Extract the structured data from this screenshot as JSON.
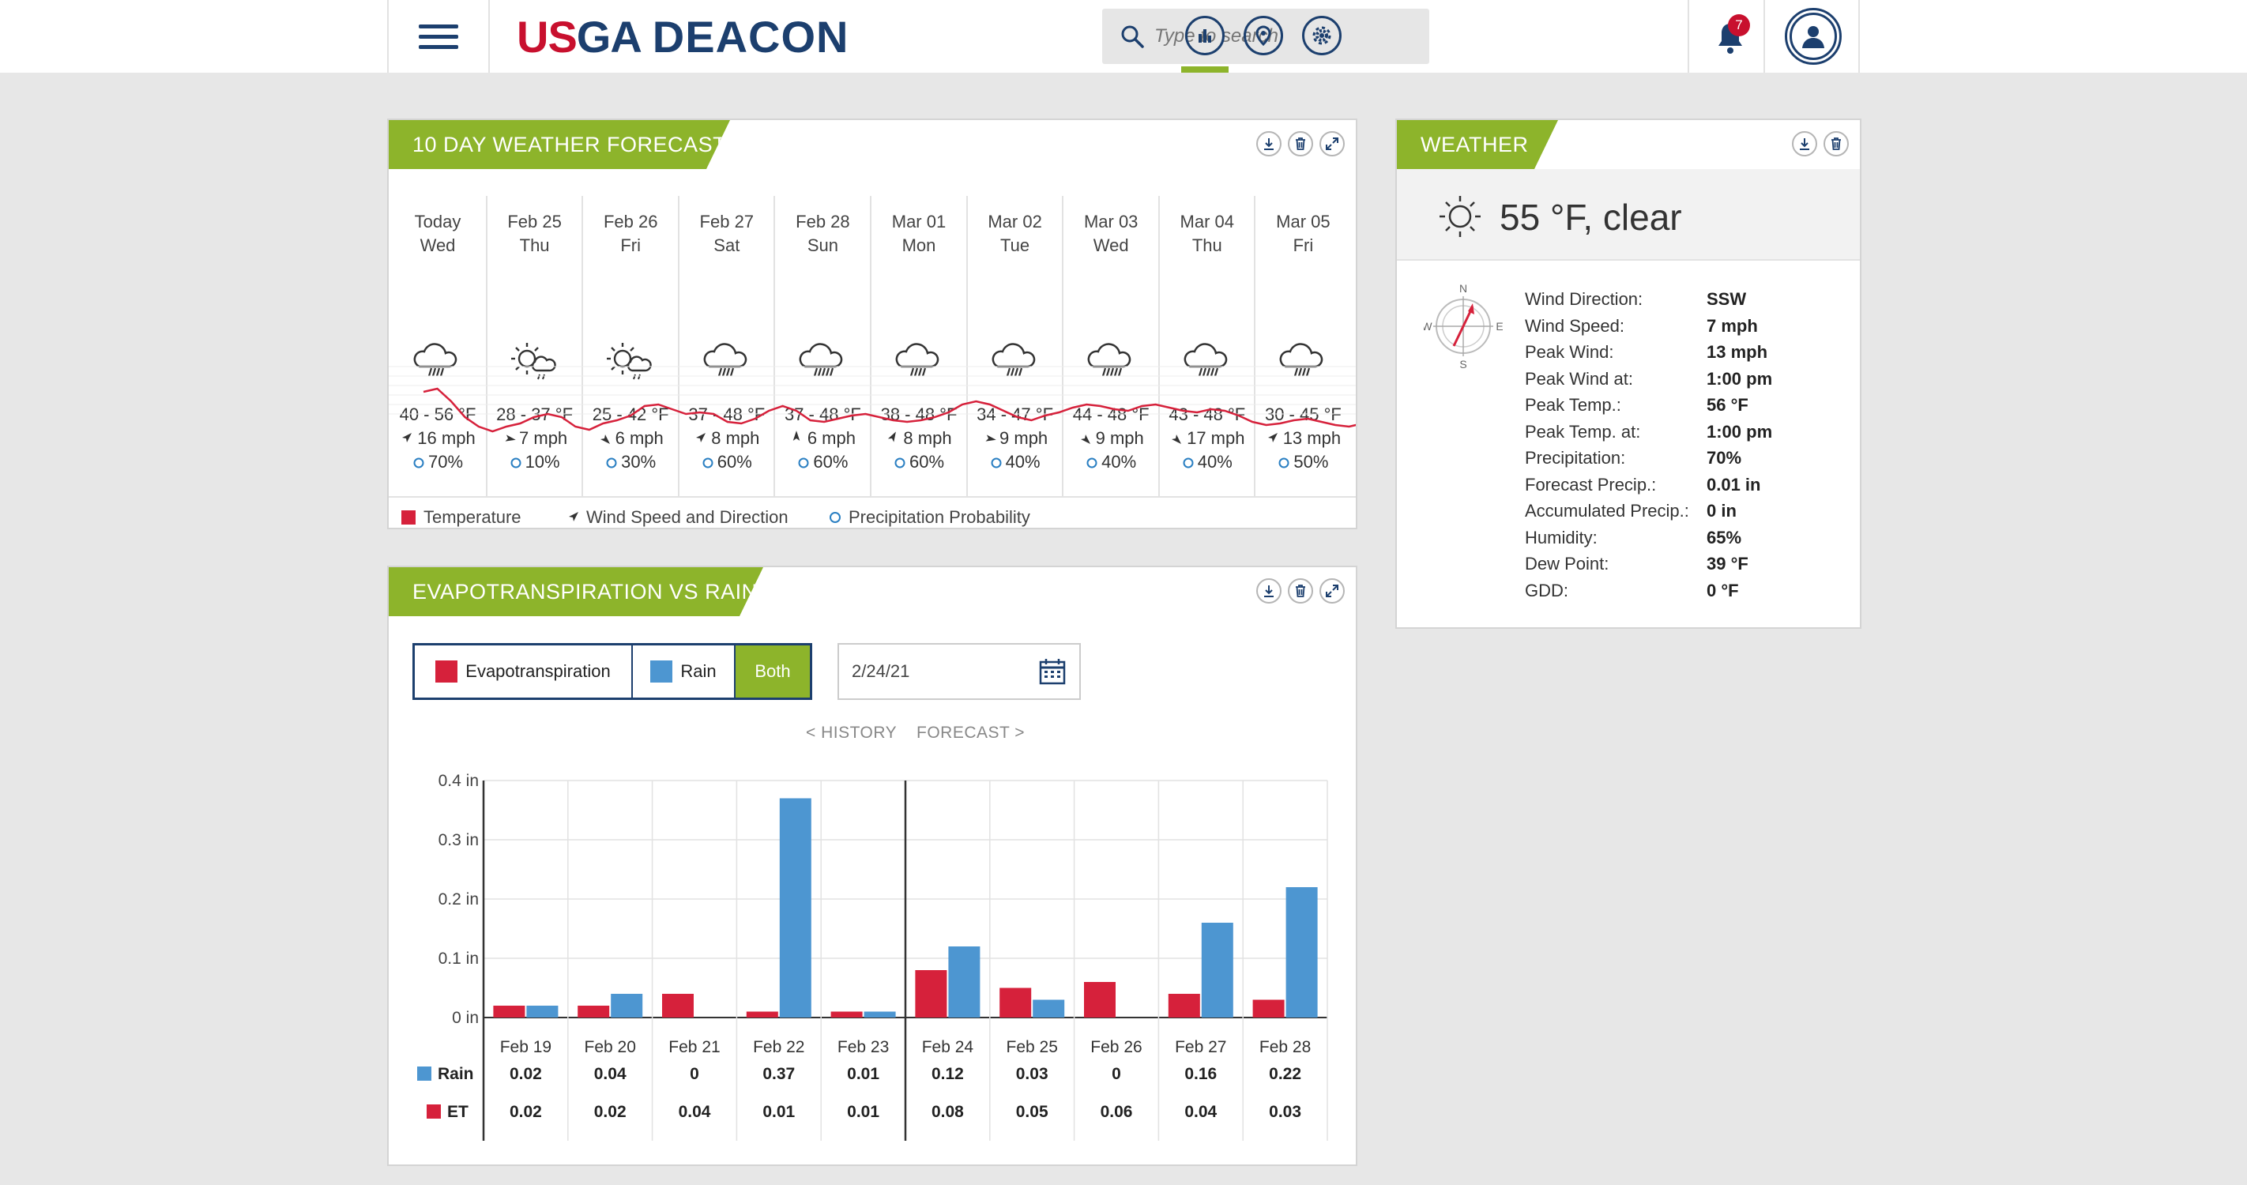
{
  "header": {
    "logo_us": "US",
    "logo_ga": "GA",
    "logo_app": "DEACON",
    "search_placeholder": "Type to search",
    "notification_count": "7"
  },
  "forecast_panel": {
    "title": "10 DAY WEATHER FORECAST",
    "days": [
      {
        "date": "Today",
        "dow": "Wed",
        "temp": "40 - 56 °F",
        "wind": "16 mph",
        "wind_dir_deg": 45,
        "precip": "70%",
        "icon": "rain"
      },
      {
        "date": "Feb 25",
        "dow": "Thu",
        "temp": "28 - 37 °F",
        "wind": "7 mph",
        "wind_dir_deg": 100,
        "precip": "10%",
        "icon": "partly-sunny"
      },
      {
        "date": "Feb 26",
        "dow": "Fri",
        "temp": "25 - 42 °F",
        "wind": "6 mph",
        "wind_dir_deg": 135,
        "precip": "30%",
        "icon": "partly-sunny"
      },
      {
        "date": "Feb 27",
        "dow": "Sat",
        "temp": "37 - 48 °F",
        "wind": "8 mph",
        "wind_dir_deg": 45,
        "precip": "60%",
        "icon": "rain"
      },
      {
        "date": "Feb 28",
        "dow": "Sun",
        "temp": "37 - 48 °F",
        "wind": "6 mph",
        "wind_dir_deg": 0,
        "precip": "60%",
        "icon": "heavy-rain"
      },
      {
        "date": "Mar 01",
        "dow": "Mon",
        "temp": "38 - 48 °F",
        "wind": "8 mph",
        "wind_dir_deg": 30,
        "precip": "60%",
        "icon": "rain"
      },
      {
        "date": "Mar 02",
        "dow": "Tue",
        "temp": "34 - 47 °F",
        "wind": "9 mph",
        "wind_dir_deg": 100,
        "precip": "40%",
        "icon": "rain"
      },
      {
        "date": "Mar 03",
        "dow": "Wed",
        "temp": "44 - 48 °F",
        "wind": "9 mph",
        "wind_dir_deg": 135,
        "precip": "40%",
        "icon": "heavy-rain"
      },
      {
        "date": "Mar 04",
        "dow": "Thu",
        "temp": "43 - 48 °F",
        "wind": "17 mph",
        "wind_dir_deg": 135,
        "precip": "40%",
        "icon": "heavy-rain"
      },
      {
        "date": "Mar 05",
        "dow": "Fri",
        "temp": "30 - 45 °F",
        "wind": "13 mph",
        "wind_dir_deg": 45,
        "precip": "50%",
        "icon": "rain"
      }
    ],
    "legend": {
      "temperature": "Temperature",
      "wind": "Wind Speed and Direction",
      "precip": "Precipitation Probability"
    }
  },
  "weather_panel": {
    "title": "WEATHER",
    "current": "55 °F, clear",
    "compass": {
      "n": "N",
      "s": "S",
      "e": "E",
      "w": "W"
    },
    "details": [
      {
        "label": "Wind Direction:",
        "value": "SSW"
      },
      {
        "label": "Wind Speed:",
        "value": "7 mph"
      },
      {
        "label": "Peak Wind:",
        "value": "13 mph"
      },
      {
        "label": "Peak Wind at:",
        "value": "1:00 pm"
      },
      {
        "label": "Peak Temp.:",
        "value": "56 °F"
      },
      {
        "label": "Peak Temp. at:",
        "value": "1:00 pm"
      },
      {
        "label": "Precipitation:",
        "value": "70%"
      },
      {
        "label": "Forecast Precip.:",
        "value": "0.01 in"
      },
      {
        "label": "Accumulated Precip.:",
        "value": "0 in"
      },
      {
        "label": "Humidity:",
        "value": "65%"
      },
      {
        "label": "Dew Point:",
        "value": "39 °F"
      },
      {
        "label": "GDD:",
        "value": "0 °F"
      }
    ]
  },
  "et_panel": {
    "title": "EVAPOTRANSPIRATION VS RAIN",
    "toggle": {
      "et": "Evapotranspiration",
      "rain": "Rain",
      "both": "Both"
    },
    "date": "2/24/21",
    "history_label": "< HISTORY",
    "forecast_label": "FORECAST >",
    "row_labels": {
      "rain": "Rain",
      "et": "ET"
    }
  },
  "colors": {
    "accent": "#8db42b",
    "navy": "#1c3f6e",
    "et": "#d6213b",
    "rain": "#4d96d1"
  },
  "chart_data": {
    "type": "bar",
    "categories": [
      "Feb 19",
      "Feb 20",
      "Feb 21",
      "Feb 22",
      "Feb 23",
      "Feb 24",
      "Feb 25",
      "Feb 26",
      "Feb 27",
      "Feb 28"
    ],
    "series": [
      {
        "name": "ET",
        "values": [
          0.02,
          0.02,
          0.04,
          0.01,
          0.01,
          0.08,
          0.05,
          0.06,
          0.04,
          0.03
        ]
      },
      {
        "name": "Rain",
        "values": [
          0.02,
          0.04,
          0,
          0.37,
          0.01,
          0.12,
          0.03,
          0,
          0.16,
          0.22
        ]
      }
    ],
    "value_labels": {
      "rain": [
        "0.02",
        "0.04",
        "0",
        "0.37",
        "0.01",
        "0.12",
        "0.03",
        "0",
        "0.16",
        "0.22"
      ],
      "et": [
        "0.02",
        "0.02",
        "0.04",
        "0.01",
        "0.01",
        "0.08",
        "0.05",
        "0.06",
        "0.04",
        "0.03"
      ]
    },
    "y_ticks": [
      "0 in",
      "0.1 in",
      "0.2 in",
      "0.3 in",
      "0.4 in"
    ],
    "ylim": [
      0,
      0.4
    ],
    "grid": true
  }
}
